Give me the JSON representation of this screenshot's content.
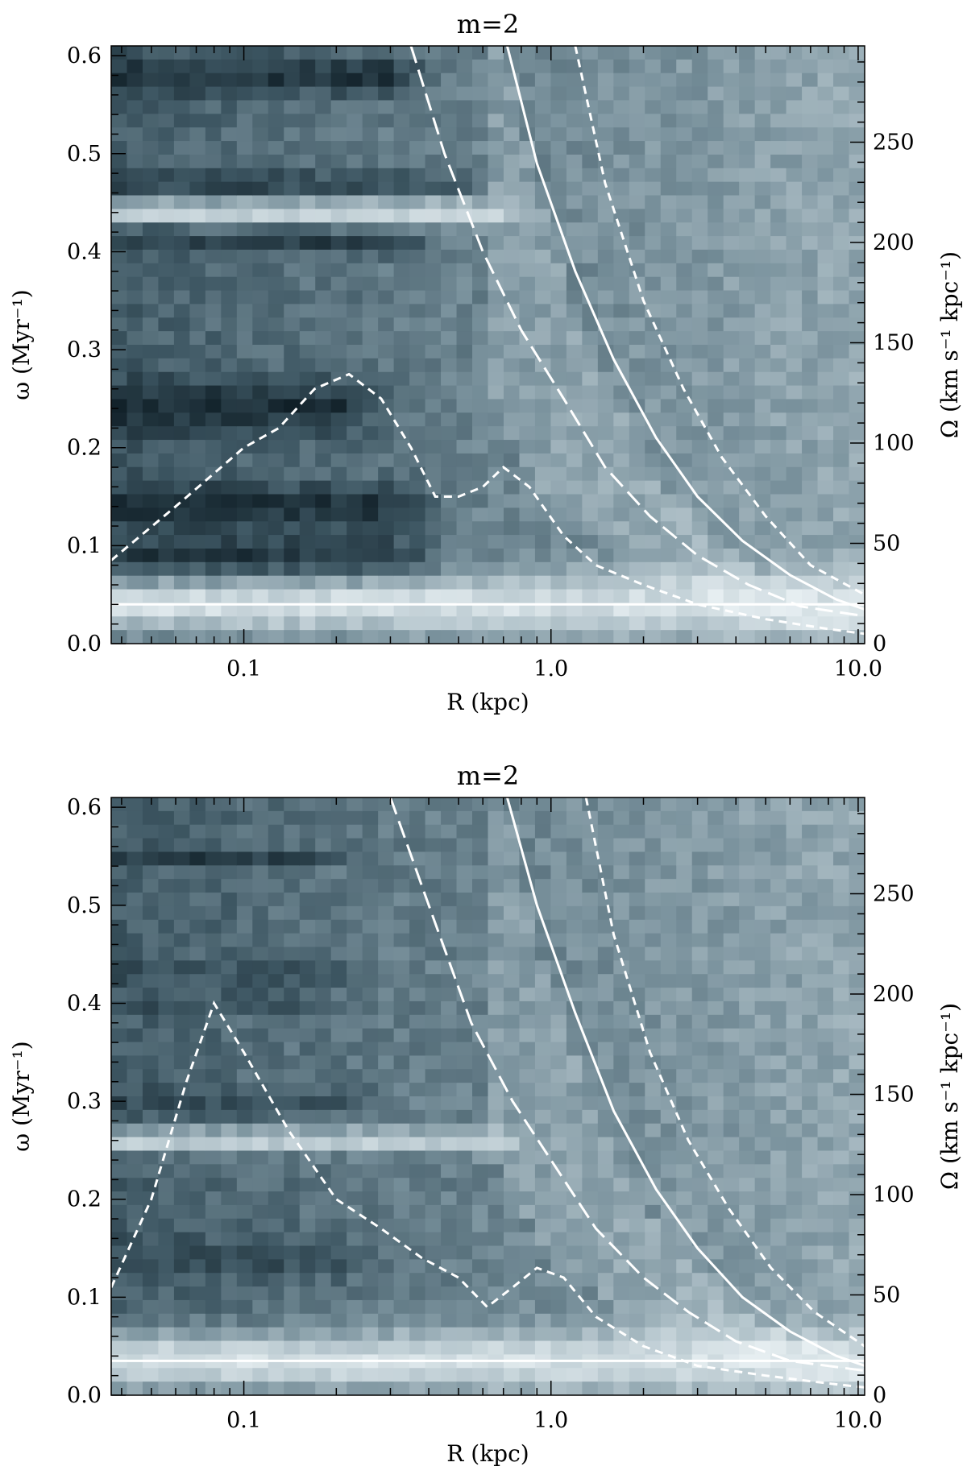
{
  "chart_data": [
    {
      "type": "heatmap",
      "title": "m=2",
      "xlabel": "R (kpc)",
      "ylabel": "ω (Myr⁻¹)",
      "ylabel_right": "Ω (km s⁻¹ kpc⁻¹)",
      "xscale": "log",
      "xlim": [
        0.037,
        10.5
      ],
      "ylim": [
        0.0,
        0.61
      ],
      "y2lim": [
        0,
        298
      ],
      "x_ticks": [
        0.1,
        1.0,
        10.0
      ],
      "x_tick_labels": [
        "0.1",
        "1.0",
        "10.0"
      ],
      "y_ticks": [
        0.0,
        0.1,
        0.2,
        0.3,
        0.4,
        0.5,
        0.6
      ],
      "y_tick_labels": [
        "0.0",
        "0.1",
        "0.2",
        "0.3",
        "0.4",
        "0.5",
        "0.6"
      ],
      "y2_ticks": [
        0,
        50,
        100,
        150,
        200,
        250
      ],
      "y2_tick_labels": [
        "0",
        "50",
        "100",
        "150",
        "200",
        "250"
      ],
      "colormap": [
        "#0f1e26",
        "#3d5662",
        "#7a929d",
        "#b8c8cf",
        "#e6eef1"
      ],
      "bands": [
        {
          "y": 0.44,
          "width": 0.013,
          "xmax": 0.6,
          "level": 0.85
        },
        {
          "y": 0.04,
          "width": 0.03,
          "xmax": 10.5,
          "level": 0.9
        },
        {
          "y": 0.58,
          "width": 0.02,
          "xmax": 0.3,
          "level": 0.1
        },
        {
          "y": 0.47,
          "width": 0.01,
          "xmax": 0.4,
          "level": 0.15
        },
        {
          "y": 0.41,
          "width": 0.012,
          "xmax": 0.3,
          "level": 0.15
        },
        {
          "y": 0.24,
          "width": 0.03,
          "xmax": 0.2,
          "level": 0.08
        },
        {
          "y": 0.14,
          "width": 0.025,
          "xmax": 0.3,
          "level": 0.1
        },
        {
          "y": 0.09,
          "width": 0.02,
          "xmax": 0.3,
          "level": 0.12
        }
      ],
      "series": [
        {
          "name": "Ω",
          "style": "solid",
          "x": [
            0.72,
            0.9,
            1.2,
            1.6,
            2.2,
            3.0,
            4.2,
            6.0,
            8.5,
            10.5
          ],
          "y": [
            0.61,
            0.49,
            0.38,
            0.29,
            0.21,
            0.15,
            0.105,
            0.07,
            0.045,
            0.035
          ]
        },
        {
          "name": "Ω−κ/2",
          "style": "long-dash",
          "x": [
            0.35,
            0.45,
            0.6,
            0.8,
            1.1,
            1.5,
            2.1,
            3.0,
            4.4,
            6.5,
            10.5
          ],
          "y": [
            0.61,
            0.5,
            0.4,
            0.32,
            0.25,
            0.18,
            0.13,
            0.09,
            0.06,
            0.038,
            0.028
          ]
        },
        {
          "name": "Ω+κ/2",
          "style": "short-dash",
          "x": [
            1.2,
            1.5,
            2.0,
            2.7,
            3.6,
            5.0,
            7.0,
            10.5
          ],
          "y": [
            0.61,
            0.47,
            0.35,
            0.26,
            0.19,
            0.13,
            0.08,
            0.05
          ]
        },
        {
          "name": "ILR-inner",
          "style": "short-dash",
          "x": [
            0.037,
            0.06,
            0.1,
            0.13,
            0.17,
            0.22,
            0.28,
            0.35,
            0.42,
            0.5,
            0.6,
            0.7,
            0.85,
            1.1,
            1.4,
            2.0,
            3.0,
            5.0,
            8.0,
            10.5
          ],
          "y": [
            0.085,
            0.14,
            0.2,
            0.22,
            0.26,
            0.275,
            0.25,
            0.2,
            0.15,
            0.15,
            0.16,
            0.18,
            0.16,
            0.11,
            0.08,
            0.06,
            0.04,
            0.025,
            0.015,
            0.01
          ]
        },
        {
          "name": "Ω-flat",
          "style": "solid",
          "x": [
            0.037,
            10.5
          ],
          "y": [
            0.04,
            0.04
          ]
        }
      ]
    },
    {
      "type": "heatmap",
      "title": "m=2",
      "xlabel": "R (kpc)",
      "ylabel": "ω (Myr⁻¹)",
      "ylabel_right": "Ω (km s⁻¹ kpc⁻¹)",
      "xscale": "log",
      "xlim": [
        0.037,
        10.5
      ],
      "ylim": [
        0.0,
        0.61
      ],
      "y2lim": [
        0,
        298
      ],
      "x_ticks": [
        0.1,
        1.0,
        10.0
      ],
      "x_tick_labels": [
        "0.1",
        "1.0",
        "10.0"
      ],
      "y_ticks": [
        0.0,
        0.1,
        0.2,
        0.3,
        0.4,
        0.5,
        0.6
      ],
      "y_tick_labels": [
        "0.0",
        "0.1",
        "0.2",
        "0.3",
        "0.4",
        "0.5",
        "0.6"
      ],
      "y2_ticks": [
        0,
        50,
        100,
        150,
        200,
        250
      ],
      "y2_tick_labels": [
        "0",
        "50",
        "100",
        "150",
        "200",
        "250"
      ],
      "colormap": [
        "#0f1e26",
        "#3d5662",
        "#7a929d",
        "#b8c8cf",
        "#e6eef1"
      ],
      "bands": [
        {
          "y": 0.26,
          "width": 0.012,
          "xmax": 0.6,
          "level": 0.82
        },
        {
          "y": 0.035,
          "width": 0.03,
          "xmax": 10.5,
          "level": 0.9
        },
        {
          "y": 0.55,
          "width": 0.008,
          "xmax": 0.15,
          "level": 0.12
        },
        {
          "y": 0.43,
          "width": 0.008,
          "xmax": 0.2,
          "level": 0.15
        },
        {
          "y": 0.4,
          "width": 0.01,
          "xmax": 0.15,
          "level": 0.2
        },
        {
          "y": 0.3,
          "width": 0.012,
          "xmax": 0.2,
          "level": 0.2
        },
        {
          "y": 0.14,
          "width": 0.02,
          "xmax": 0.2,
          "level": 0.2
        }
      ],
      "series": [
        {
          "name": "Ω",
          "style": "solid",
          "x": [
            0.72,
            0.9,
            1.2,
            1.6,
            2.2,
            3.0,
            4.2,
            6.0,
            8.5,
            10.5
          ],
          "y": [
            0.61,
            0.5,
            0.39,
            0.29,
            0.21,
            0.15,
            0.1,
            0.065,
            0.04,
            0.03
          ]
        },
        {
          "name": "Ω−κ/2",
          "style": "long-dash",
          "x": [
            0.3,
            0.4,
            0.55,
            0.75,
            1.0,
            1.4,
            2.0,
            2.8,
            4.0,
            6.0,
            10.5
          ],
          "y": [
            0.61,
            0.5,
            0.38,
            0.3,
            0.24,
            0.17,
            0.12,
            0.085,
            0.055,
            0.035,
            0.025
          ]
        },
        {
          "name": "Ω+κ/2",
          "style": "short-dash",
          "x": [
            1.3,
            1.6,
            2.1,
            2.8,
            3.8,
            5.2,
            7.2,
            10.5
          ],
          "y": [
            0.61,
            0.47,
            0.35,
            0.26,
            0.19,
            0.13,
            0.085,
            0.05
          ]
        },
        {
          "name": "ILR-inner",
          "style": "short-dash",
          "x": [
            0.037,
            0.05,
            0.065,
            0.08,
            0.1,
            0.14,
            0.2,
            0.28,
            0.38,
            0.5,
            0.62,
            0.75,
            0.9,
            1.1,
            1.4,
            2.0,
            3.0,
            5.0,
            8.0,
            10.5
          ],
          "y": [
            0.11,
            0.2,
            0.32,
            0.4,
            0.35,
            0.27,
            0.2,
            0.17,
            0.14,
            0.12,
            0.09,
            0.11,
            0.13,
            0.12,
            0.08,
            0.05,
            0.03,
            0.02,
            0.012,
            0.008
          ]
        },
        {
          "name": "Ω-flat",
          "style": "solid",
          "x": [
            0.037,
            10.5
          ],
          "y": [
            0.035,
            0.035
          ]
        }
      ]
    }
  ]
}
